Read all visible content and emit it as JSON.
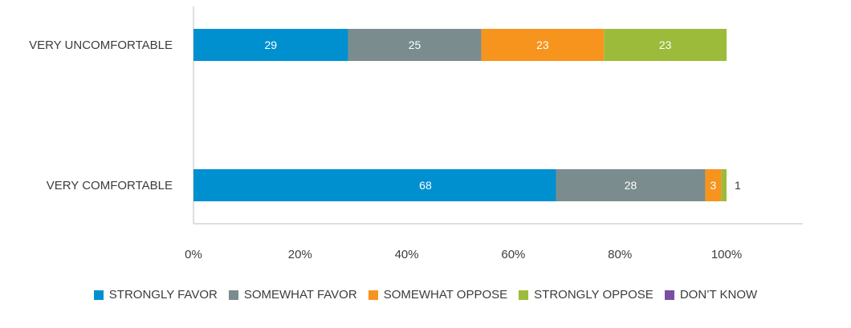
{
  "chart_data": {
    "type": "bar",
    "orientation": "horizontal",
    "stacked": true,
    "categories": [
      "VERY UNCOMFORTABLE",
      "VERY COMFORTABLE"
    ],
    "series": [
      {
        "name": "STRONGLY FAVOR",
        "color": "#0090d0",
        "values": [
          29,
          68
        ]
      },
      {
        "name": "SOMEWHAT FAVOR",
        "color": "#7a8c8e",
        "values": [
          25,
          28
        ]
      },
      {
        "name": "SOMEWHAT OPPOSE",
        "color": "#f7941d",
        "values": [
          23,
          3
        ]
      },
      {
        "name": "STRONGLY OPPOSE",
        "color": "#9cbb3b",
        "values": [
          23,
          1
        ]
      },
      {
        "name": "DON’T KNOW",
        "color": "#7a4fa3",
        "values": [
          0,
          0
        ]
      }
    ],
    "xlim": [
      0,
      100
    ],
    "xticks": [
      "0%",
      "20%",
      "40%",
      "60%",
      "80%",
      "100%"
    ],
    "grid": false,
    "legend_position": "bottom"
  }
}
